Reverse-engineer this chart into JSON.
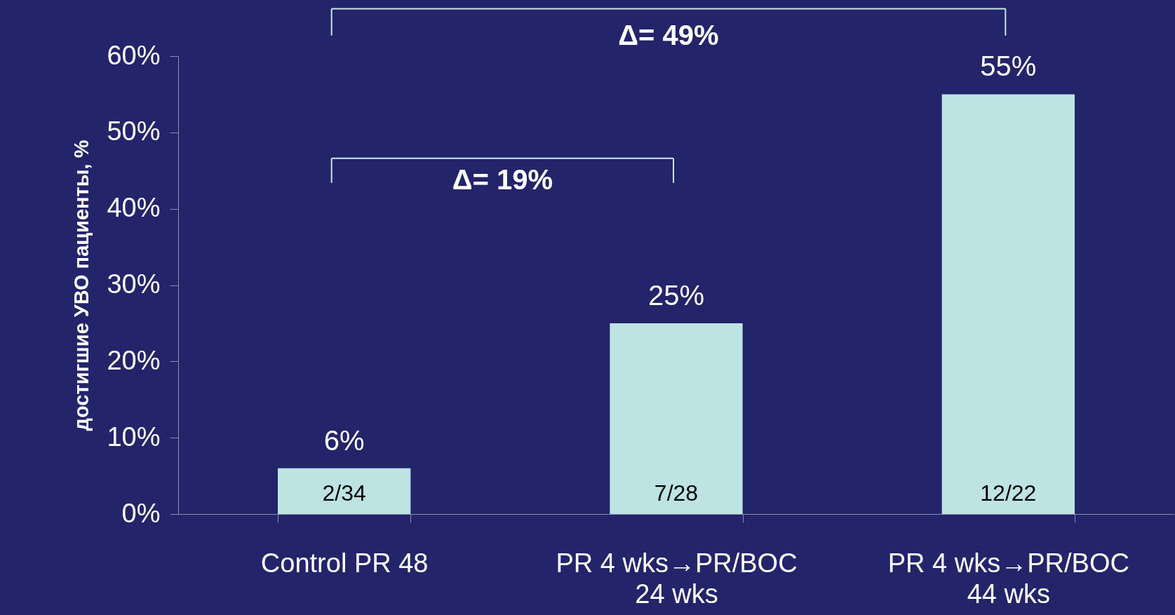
{
  "chart_data": {
    "type": "bar",
    "ylabel": "достигшие УВО пациенты, %",
    "categories": [
      "Control PR 48",
      "PR 4 wks→PR/BOC\n24 wks",
      "PR 4 wks→PR/BOC\n44 wks"
    ],
    "values": [
      6,
      25,
      55
    ],
    "value_labels": [
      "6%",
      "25%",
      "55%"
    ],
    "color": "#bde3e3",
    "ylim": [
      0,
      60
    ],
    "yticks": [
      {
        "value": 0,
        "label": "0%"
      },
      {
        "value": 10,
        "label": "10%"
      },
      {
        "value": 20,
        "label": "20%"
      },
      {
        "value": 30,
        "label": "30%"
      },
      {
        "value": 40,
        "label": "40%"
      },
      {
        "value": 50,
        "label": "50%"
      },
      {
        "value": 60,
        "label": "60%"
      }
    ],
    "grid": false,
    "annotations": [
      "Δ= 49%",
      "Δ= 19%",
      "2/34",
      "7/28",
      "12/22"
    ]
  }
}
